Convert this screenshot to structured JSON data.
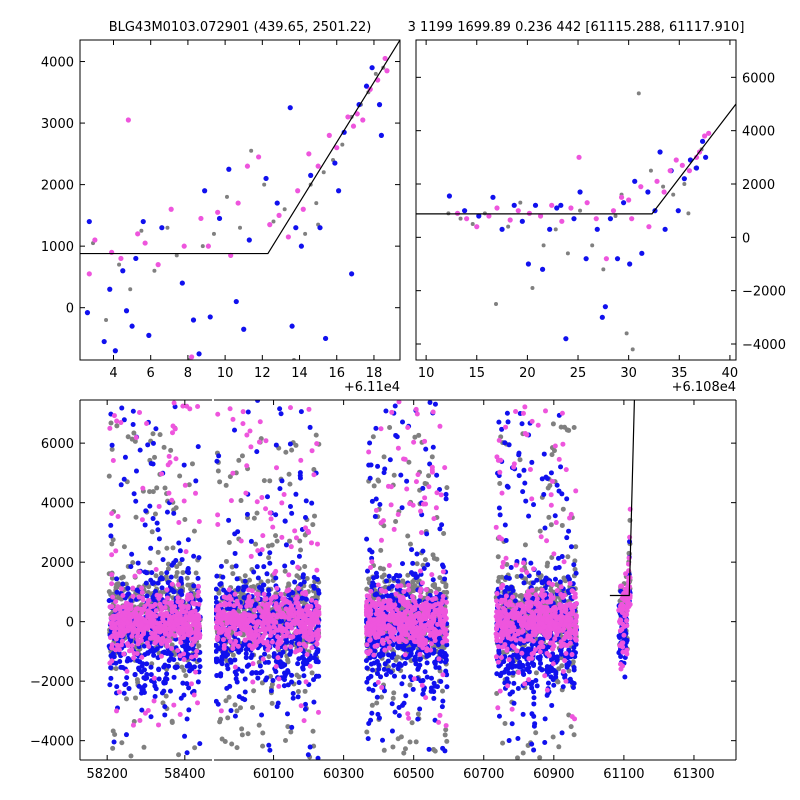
{
  "figure": {
    "title_left": "BLG43M0103.072901 (439.65, 2501.22)",
    "title_right": "3 1199 1699.89 0.236 442 [61115.288, 61117.910]"
  },
  "colors": {
    "series_gray": "#808080",
    "series_blue": "#1010ee",
    "series_magenta": "#ee55dd",
    "model_line": "#000000"
  },
  "chart_data": [
    {
      "id": "top-left",
      "type": "scatter",
      "title": "BLG43M0103.072901 (439.65, 2501.22)",
      "x_offset_label": "+6.11e4",
      "xlim": [
        2.2,
        19.4
      ],
      "ylim": [
        -850,
        4350
      ],
      "xticks": [
        4,
        6,
        8,
        10,
        12,
        14,
        16,
        18
      ],
      "yticks": [
        0,
        1000,
        2000,
        3000,
        4000
      ],
      "tick_side_y": "left",
      "model": {
        "x": [
          2.2,
          12.3,
          19.4
        ],
        "y": [
          880,
          880,
          4350
        ]
      },
      "series": [
        {
          "name": "gray",
          "points": [
            [
              2.9,
              1050
            ],
            [
              3.6,
              -200
            ],
            [
              4.3,
              700
            ],
            [
              4.9,
              300
            ],
            [
              5.5,
              1250
            ],
            [
              6.2,
              600
            ],
            [
              6.9,
              1300
            ],
            [
              7.4,
              850
            ],
            [
              8.1,
              -850
            ],
            [
              8.8,
              1000
            ],
            [
              9.4,
              1200
            ],
            [
              10.1,
              1800
            ],
            [
              10.8,
              1300
            ],
            [
              11.4,
              2550
            ],
            [
              12.1,
              2000
            ],
            [
              12.6,
              1400
            ],
            [
              13.2,
              1600
            ],
            [
              13.7,
              -850
            ],
            [
              14.3,
              1200
            ],
            [
              14.9,
              1700
            ],
            [
              15.3,
              2200
            ],
            [
              15.8,
              2400
            ],
            [
              16.3,
              2650
            ],
            [
              16.8,
              3100
            ],
            [
              17.3,
              3300
            ],
            [
              17.7,
              3500
            ],
            [
              18.1,
              3800
            ],
            [
              18.5,
              3900
            ],
            [
              14.6,
              2000
            ],
            [
              15.0,
              1350
            ]
          ]
        },
        {
          "name": "blue",
          "points": [
            [
              2.6,
              -80
            ],
            [
              2.7,
              1400
            ],
            [
              3.5,
              -550
            ],
            [
              3.8,
              300
            ],
            [
              4.1,
              -700
            ],
            [
              4.5,
              600
            ],
            [
              4.7,
              -50
            ],
            [
              5.0,
              -300
            ],
            [
              5.2,
              800
            ],
            [
              5.6,
              1400
            ],
            [
              5.9,
              -450
            ],
            [
              6.6,
              1300
            ],
            [
              7.7,
              400
            ],
            [
              8.3,
              -200
            ],
            [
              8.6,
              -750
            ],
            [
              8.9,
              1900
            ],
            [
              9.2,
              -150
            ],
            [
              9.7,
              1450
            ],
            [
              10.2,
              2250
            ],
            [
              10.6,
              100
            ],
            [
              11.0,
              -350
            ],
            [
              11.3,
              1100
            ],
            [
              12.2,
              2100
            ],
            [
              12.8,
              1700
            ],
            [
              13.5,
              3250
            ],
            [
              13.8,
              1300
            ],
            [
              14.1,
              1000
            ],
            [
              14.6,
              2150
            ],
            [
              15.1,
              1300
            ],
            [
              15.4,
              -500
            ],
            [
              15.9,
              2350
            ],
            [
              16.4,
              2850
            ],
            [
              16.8,
              550
            ],
            [
              17.2,
              3300
            ],
            [
              17.6,
              3600
            ],
            [
              17.9,
              3900
            ],
            [
              18.3,
              3300
            ],
            [
              18.4,
              2800
            ],
            [
              13.6,
              -300
            ],
            [
              16.1,
              1900
            ]
          ]
        },
        {
          "name": "magenta",
          "points": [
            [
              2.7,
              550
            ],
            [
              3.0,
              1100
            ],
            [
              3.9,
              900
            ],
            [
              4.4,
              800
            ],
            [
              4.8,
              3050
            ],
            [
              5.3,
              1200
            ],
            [
              5.7,
              1050
            ],
            [
              6.4,
              700
            ],
            [
              7.1,
              1600
            ],
            [
              7.8,
              1000
            ],
            [
              8.2,
              -800
            ],
            [
              8.7,
              1450
            ],
            [
              9.1,
              1000
            ],
            [
              9.6,
              1550
            ],
            [
              10.3,
              850
            ],
            [
              10.7,
              1700
            ],
            [
              11.2,
              2300
            ],
            [
              11.8,
              2450
            ],
            [
              12.4,
              1350
            ],
            [
              12.9,
              1500
            ],
            [
              13.4,
              1150
            ],
            [
              13.9,
              1900
            ],
            [
              14.5,
              2500
            ],
            [
              15.0,
              2300
            ],
            [
              15.6,
              2800
            ],
            [
              16.0,
              2600
            ],
            [
              16.6,
              3100
            ],
            [
              17.1,
              3150
            ],
            [
              17.4,
              3050
            ],
            [
              17.8,
              3550
            ],
            [
              18.2,
              3700
            ],
            [
              18.6,
              4050
            ],
            [
              18.7,
              3850
            ],
            [
              14.2,
              1600
            ],
            [
              16.9,
              2950
            ]
          ]
        }
      ]
    },
    {
      "id": "top-right",
      "type": "scatter",
      "title": "3 1199 1699.89 0.236 442 [61115.288, 61117.910]",
      "x_offset_label": "+6.108e4",
      "xlim": [
        9.0,
        40.6
      ],
      "ylim": [
        -4600,
        7400
      ],
      "xticks": [
        10,
        15,
        20,
        25,
        30,
        35,
        40
      ],
      "yticks": [
        -4000,
        -2000,
        0,
        2000,
        4000,
        6000
      ],
      "tick_side_y": "right",
      "model": {
        "x": [
          9.0,
          32.3,
          40.6
        ],
        "y": [
          880,
          880,
          5000
        ]
      },
      "series": [
        {
          "name": "gray",
          "points": [
            [
              12.2,
              900
            ],
            [
              13.4,
              700
            ],
            [
              14.6,
              500
            ],
            [
              15.8,
              900
            ],
            [
              16.9,
              -2500
            ],
            [
              18.1,
              400
            ],
            [
              19.3,
              1300
            ],
            [
              20.5,
              -1900
            ],
            [
              21.6,
              -300
            ],
            [
              22.8,
              300
            ],
            [
              24.0,
              -600
            ],
            [
              25.2,
              1000
            ],
            [
              26.4,
              -300
            ],
            [
              27.5,
              -1200
            ],
            [
              28.7,
              800
            ],
            [
              29.8,
              -3600
            ],
            [
              30.4,
              -4200
            ],
            [
              31.0,
              5400
            ],
            [
              32.2,
              2500
            ],
            [
              33.4,
              1900
            ],
            [
              34.4,
              1600
            ],
            [
              35.5,
              2000
            ],
            [
              36.6,
              2600
            ],
            [
              37.2,
              3300
            ],
            [
              29.3,
              1600
            ],
            [
              35.9,
              900
            ]
          ]
        },
        {
          "name": "blue",
          "points": [
            [
              12.3,
              1550
            ],
            [
              13.8,
              1000
            ],
            [
              15.2,
              800
            ],
            [
              16.6,
              1500
            ],
            [
              17.5,
              300
            ],
            [
              18.7,
              1200
            ],
            [
              19.5,
              600
            ],
            [
              20.1,
              -1000
            ],
            [
              20.8,
              1200
            ],
            [
              21.5,
              -1200
            ],
            [
              22.2,
              300
            ],
            [
              23.3,
              1200
            ],
            [
              23.8,
              -3800
            ],
            [
              24.6,
              700
            ],
            [
              25.2,
              1700
            ],
            [
              25.8,
              -800
            ],
            [
              26.9,
              300
            ],
            [
              27.7,
              -2600
            ],
            [
              28.2,
              700
            ],
            [
              28.9,
              -800
            ],
            [
              29.5,
              1300
            ],
            [
              30.1,
              -1000
            ],
            [
              30.6,
              2100
            ],
            [
              31.3,
              -600
            ],
            [
              31.9,
              1700
            ],
            [
              32.6,
              1000
            ],
            [
              33.1,
              3200
            ],
            [
              33.6,
              300
            ],
            [
              34.2,
              2500
            ],
            [
              34.9,
              1000
            ],
            [
              35.5,
              2200
            ],
            [
              36.1,
              2900
            ],
            [
              36.7,
              2600
            ],
            [
              37.3,
              3600
            ],
            [
              37.6,
              3000
            ],
            [
              27.4,
              -3000
            ],
            [
              22.9,
              1100
            ]
          ]
        },
        {
          "name": "magenta",
          "points": [
            [
              13.1,
              900
            ],
            [
              14.0,
              700
            ],
            [
              15.0,
              400
            ],
            [
              16.2,
              800
            ],
            [
              17.0,
              1100
            ],
            [
              18.3,
              650
            ],
            [
              19.1,
              1000
            ],
            [
              20.2,
              900
            ],
            [
              21.3,
              800
            ],
            [
              22.4,
              1200
            ],
            [
              23.4,
              600
            ],
            [
              24.3,
              1100
            ],
            [
              25.1,
              3000
            ],
            [
              25.9,
              1300
            ],
            [
              26.8,
              700
            ],
            [
              27.8,
              -800
            ],
            [
              28.5,
              1000
            ],
            [
              29.3,
              1500
            ],
            [
              30.3,
              700
            ],
            [
              31.2,
              1900
            ],
            [
              32.0,
              400
            ],
            [
              32.8,
              2100
            ],
            [
              33.5,
              1700
            ],
            [
              34.1,
              2500
            ],
            [
              34.7,
              2900
            ],
            [
              35.3,
              2700
            ],
            [
              36.0,
              2500
            ],
            [
              36.7,
              3000
            ],
            [
              37.0,
              3200
            ],
            [
              37.5,
              3800
            ],
            [
              37.9,
              3900
            ],
            [
              30.0,
              1400
            ]
          ]
        }
      ]
    },
    {
      "id": "bottom",
      "type": "scatter",
      "title": "",
      "xlim": [
        58130,
        61420
      ],
      "ylim": [
        -4650,
        7450
      ],
      "xticks": [
        58200,
        58400,
        60100,
        60300,
        60500,
        60700,
        60900,
        61100,
        61300
      ],
      "yticks": [
        -4000,
        -2000,
        0,
        2000,
        4000,
        6000
      ],
      "tick_side_y": "left",
      "x_break": {
        "after": 58470,
        "resume": 59930
      },
      "model": {
        "x": [
          61060,
          61115.3,
          61117.9,
          61130
        ],
        "y": [
          880,
          880,
          2000,
          7450
        ]
      },
      "seasons": [
        {
          "name": "season-1",
          "range": [
            58205,
            58440
          ]
        },
        {
          "name": "season-2",
          "range": [
            59935,
            60230
          ]
        },
        {
          "name": "season-3",
          "range": [
            60365,
            60595
          ]
        },
        {
          "name": "season-4",
          "range": [
            60735,
            60965
          ]
        },
        {
          "name": "season-5",
          "range": [
            61085,
            61118
          ]
        }
      ],
      "series": [
        {
          "name": "gray",
          "core_mean": 200,
          "core_sd": 700,
          "tail_range": [
            -4600,
            6700
          ]
        },
        {
          "name": "blue",
          "core_mean": -400,
          "core_sd": 1000,
          "tail_range": [
            -4600,
            7450
          ]
        },
        {
          "name": "magenta",
          "core_mean": 0,
          "core_sd": 450,
          "tail_range": [
            -3500,
            7400
          ]
        }
      ]
    }
  ]
}
